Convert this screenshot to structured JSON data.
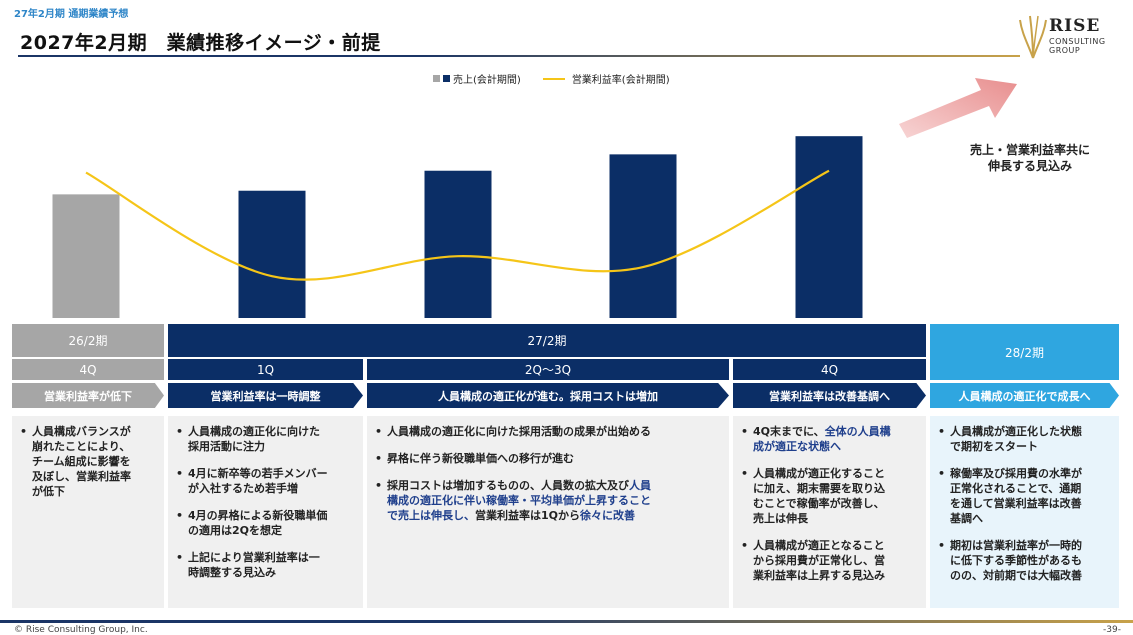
{
  "header": {
    "subtitle": "27年2月期 通期業績予想",
    "title": "2027年2月期　業績推移イメージ・前提"
  },
  "logo": {
    "name": "RISE",
    "line1": "CONSULTING",
    "line2": "GROUP"
  },
  "legend": {
    "bar": "売上(会計期間)",
    "line": "営業利益率(会計期間)"
  },
  "callout": {
    "line1": "売上・営業利益率共に",
    "line2": "伸長する見込み"
  },
  "chart_data": {
    "type": "bar",
    "categories": [
      "26/2期 4Q",
      "1Q",
      "2Q",
      "3Q",
      "4Q"
    ],
    "series": [
      {
        "name": "売上(会計期間)",
        "values": [
          68,
          70,
          81,
          90,
          100
        ],
        "colors": [
          "#a6a6a6",
          "#0b2e66",
          "#0b2e66",
          "#0b2e66",
          "#0b2e66"
        ]
      },
      {
        "name": "営業利益率(会計期間)",
        "type": "line",
        "values": [
          80,
          23,
          34,
          28,
          81
        ],
        "color": "#f5c518"
      }
    ],
    "ylim": [
      0,
      110
    ]
  },
  "periods": {
    "p26": "26/2期",
    "p27": "27/2期",
    "p28": "28/2期"
  },
  "quarters": {
    "q4_prev": "4Q",
    "q1": "1Q",
    "q23": "2Q～3Q",
    "q4": "4Q"
  },
  "phases": [
    "営業利益率が低下",
    "営業利益率は一時調整",
    "人員構成の適正化が進む。採用コストは増加",
    "営業利益率は改善基調へ",
    "人員構成の適正化で成長へ"
  ],
  "columns": {
    "c1": {
      "b1": [
        "人員構成バランスが",
        "崩れたことにより、",
        "チーム組成に影響を",
        "及ぼし、営業利益率",
        "が低下"
      ]
    },
    "c2": {
      "b1": [
        "人員構成の適正化に向けた",
        "採用活動に注力"
      ],
      "b2": [
        "4月に新卒等の若手メンバー",
        "が入社するため若手増"
      ],
      "b3": [
        "4月の昇格による新役職単価",
        "の適用は2Qを想定"
      ],
      "b4": [
        "上記により営業利益率は一",
        "時調整する見込み"
      ]
    },
    "c3": {
      "b1": "人員構成の適正化に向けた採用活動の成果が出始める",
      "b2": "昇格に伴う新役職単価への移行が進む",
      "b3a": "採用コストは増加するものの、人員数の拡大及び",
      "b3b": "人員",
      "b3c": "構成の適正化に伴い稼働率・平均単価が上昇すること",
      "b3d": "で売上は伸長し、",
      "b3e": "営業利益率は1Qから",
      "b3f": "徐々に改善"
    },
    "c4": {
      "b1a": "4Q末までに、",
      "b1b": "全体の人員構",
      "b1c": "成が適正な状態へ",
      "b2": [
        "人員構成が適正化すること",
        "に加え、期末需要を取り込",
        "むことで稼働率が改善し、",
        "売上は伸長"
      ],
      "b3": [
        "人員構成が適正となること",
        "から採用費が正常化し、営",
        "業利益率は上昇する見込み"
      ]
    },
    "c5": {
      "b1": [
        "人員構成が適正化した状態",
        "で期初をスタート"
      ],
      "b2": [
        "稼働率及び採用費の水準が",
        "正常化されることで、通期",
        "を通して営業利益率は改善",
        "基調へ"
      ],
      "b3": [
        "期初は営業利益率が一時的",
        "に低下する季節性があるも",
        "のの、対前期では大幅改善"
      ]
    }
  },
  "footer": {
    "copyright": "© Rise Consulting Group, Inc.",
    "page": "-39-"
  },
  "colors": {
    "navy": "#0b2e66",
    "sky": "#2fa6e0",
    "grey": "#a6a6a6",
    "line": "#f5c518"
  }
}
